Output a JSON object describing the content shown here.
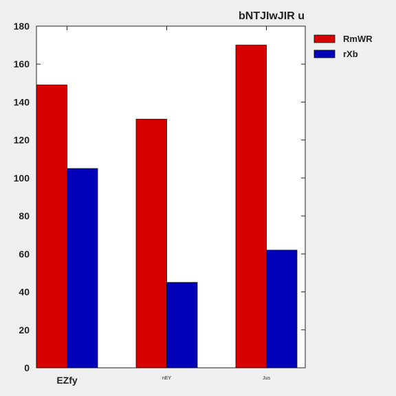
{
  "chart_data": {
    "type": "bar",
    "title": "bNTJIwJIR  u",
    "categories": [
      "EZfy",
      "nEY",
      "Jus"
    ],
    "category_label_sizes": [
      "large",
      "small",
      "small"
    ],
    "series": [
      {
        "name": "RmWR",
        "color": "#d70000",
        "values": [
          149,
          131,
          170
        ]
      },
      {
        "name": "rXb",
        "color": "#0000b9",
        "values": [
          105,
          45,
          62
        ]
      }
    ],
    "xlabel": "",
    "ylabel": "",
    "ylim": [
      0,
      180
    ],
    "yticks": [
      "0",
      "20",
      "40",
      "60",
      "80",
      "100",
      "120",
      "140",
      "160",
      "180"
    ],
    "grid": false,
    "legend_position": "outside-top-right"
  }
}
